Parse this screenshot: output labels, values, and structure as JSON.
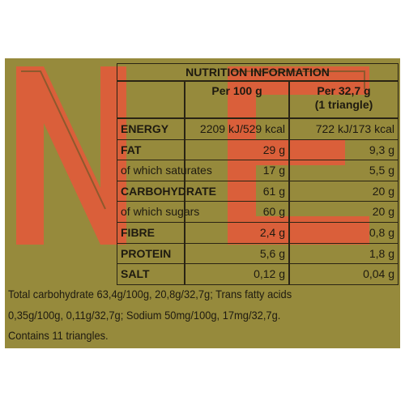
{
  "title": "NUTRITION INFORMATION",
  "columns": {
    "per_100g": "Per 100 g",
    "per_portion": "Per 32,7 g",
    "portion_note": "(1 triangle)"
  },
  "rows": [
    {
      "label": "ENERGY",
      "per_100g": "2209 kJ/529 kcal",
      "per_portion": "722 kJ/173 kcal",
      "bold": true
    },
    {
      "label": "FAT",
      "per_100g": "29 g",
      "per_portion": "9,3 g",
      "bold": true
    },
    {
      "label": "of which saturates",
      "per_100g": "17 g",
      "per_portion": "5,5 g",
      "bold": false
    },
    {
      "label": "CARBOHYDRATE",
      "per_100g": "61 g",
      "per_portion": "20 g",
      "bold": true
    },
    {
      "label": "of which sugars",
      "per_100g": "60 g",
      "per_portion": "20 g",
      "bold": false
    },
    {
      "label": "FIBRE",
      "per_100g": "2,4 g",
      "per_portion": "0,8 g",
      "bold": true
    },
    {
      "label": "PROTEIN",
      "per_100g": "5,6 g",
      "per_portion": "1,8 g",
      "bold": true
    },
    {
      "label": "SALT",
      "per_100g": "0,12 g",
      "per_portion": "0,04 g",
      "bold": true
    }
  ],
  "footnote": [
    "Total carbohydrate 63,4g/100g, 20,8g/32,7g; Trans fatty acids",
    "0,35g/100g, 0,11g/32,7g; Sodium 50mg/100g, 17mg/32,7g.",
    "Contains 11 triangles."
  ]
}
